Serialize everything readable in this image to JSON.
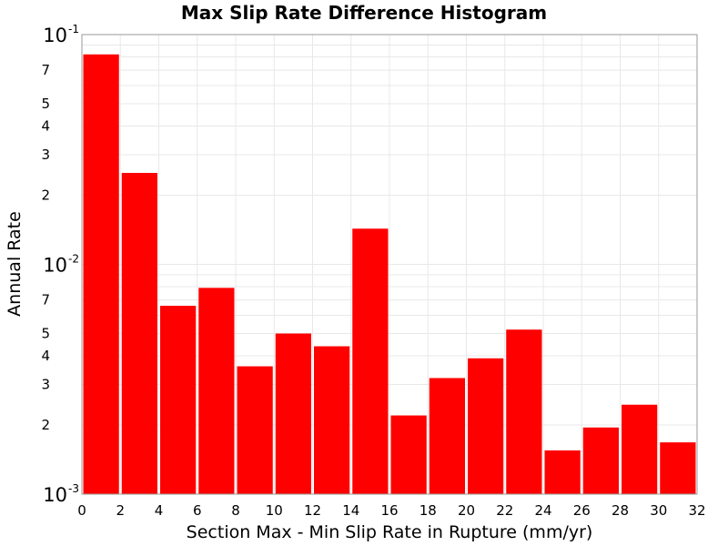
{
  "chart_data": {
    "type": "bar",
    "title": "Max Slip Rate Difference Histogram",
    "xlabel": "Section Max - Min Slip Rate in Rupture (mm/yr)",
    "ylabel": "Annual Rate",
    "y_scale": "log",
    "xlim": [
      0,
      32
    ],
    "ylim": [
      0.001,
      0.1
    ],
    "grid": true,
    "bar_color": "#ff0000",
    "x_ticks": [
      0,
      2,
      4,
      6,
      8,
      10,
      12,
      14,
      16,
      18,
      20,
      22,
      24,
      26,
      28,
      30,
      32
    ],
    "y_major_ticks": [
      {
        "value": 0.1,
        "base": "10",
        "exp": "-1"
      },
      {
        "value": 0.01,
        "base": "10",
        "exp": "-2"
      },
      {
        "value": 0.001,
        "base": "10",
        "exp": "-3"
      }
    ],
    "y_minor_labels": [
      {
        "value": 0.07,
        "label": "7"
      },
      {
        "value": 0.05,
        "label": "5"
      },
      {
        "value": 0.04,
        "label": "4"
      },
      {
        "value": 0.03,
        "label": "3"
      },
      {
        "value": 0.02,
        "label": "2"
      },
      {
        "value": 0.007,
        "label": "7"
      },
      {
        "value": 0.005,
        "label": "5"
      },
      {
        "value": 0.004,
        "label": "4"
      },
      {
        "value": 0.003,
        "label": "3"
      },
      {
        "value": 0.002,
        "label": "2"
      }
    ],
    "bins": [
      {
        "x0": 0,
        "x1": 2,
        "value": 0.082
      },
      {
        "x0": 2,
        "x1": 4,
        "value": 0.025
      },
      {
        "x0": 4,
        "x1": 6,
        "value": 0.0066
      },
      {
        "x0": 6,
        "x1": 8,
        "value": 0.0079
      },
      {
        "x0": 8,
        "x1": 10,
        "value": 0.0036
      },
      {
        "x0": 10,
        "x1": 12,
        "value": 0.005
      },
      {
        "x0": 12,
        "x1": 14,
        "value": 0.0044
      },
      {
        "x0": 14,
        "x1": 16,
        "value": 0.0143
      },
      {
        "x0": 16,
        "x1": 18,
        "value": 0.0022
      },
      {
        "x0": 18,
        "x1": 20,
        "value": 0.0032
      },
      {
        "x0": 20,
        "x1": 22,
        "value": 0.0039
      },
      {
        "x0": 22,
        "x1": 24,
        "value": 0.0052
      },
      {
        "x0": 24,
        "x1": 26,
        "value": 0.00155
      },
      {
        "x0": 26,
        "x1": 28,
        "value": 0.00195
      },
      {
        "x0": 28,
        "x1": 30,
        "value": 0.00245
      },
      {
        "x0": 30,
        "x1": 32,
        "value": 0.00168
      }
    ]
  }
}
